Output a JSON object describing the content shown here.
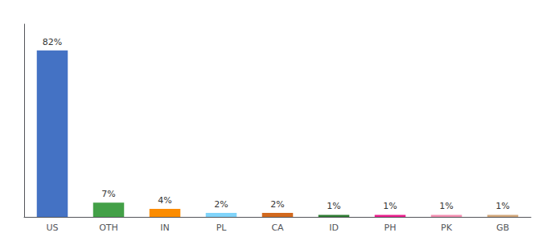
{
  "chart_data": {
    "type": "bar",
    "categories": [
      "US",
      "OTH",
      "IN",
      "PL",
      "CA",
      "ID",
      "PH",
      "PK",
      "GB"
    ],
    "values": [
      82,
      7,
      4,
      2,
      2,
      1,
      1,
      1,
      1
    ],
    "value_labels": [
      "82%",
      "7%",
      "4%",
      "2%",
      "2%",
      "1%",
      "1%",
      "1%",
      "1%"
    ],
    "colors": [
      "#4472c4",
      "#43a047",
      "#fb8c00",
      "#81d4fa",
      "#d2691e",
      "#2e7d32",
      "#e91e8c",
      "#f48fb1",
      "#d2a679"
    ],
    "ylim": [
      0,
      95
    ],
    "grid": false,
    "data_labels": true,
    "tick_labels": "x"
  }
}
